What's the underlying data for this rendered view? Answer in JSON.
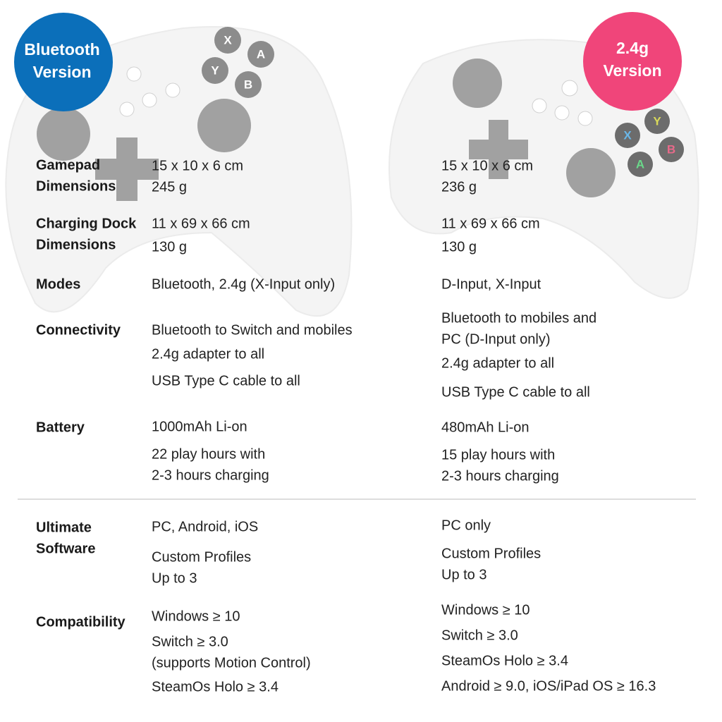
{
  "badges": {
    "left": [
      "Bluetooth",
      "Version"
    ],
    "right": [
      "2.4g",
      "Version"
    ]
  },
  "controllers": {
    "left": {
      "buttons": [
        "X",
        "A",
        "Y",
        "B"
      ]
    },
    "right": {
      "buttons": [
        "Y",
        "X",
        "B",
        "A"
      ]
    }
  },
  "rows": [
    {
      "label": [
        "Gamepad",
        "Dimensions"
      ],
      "left": [
        "15 x 10 x 6 cm",
        "245 g"
      ],
      "right": [
        "15 x 10 x 6 cm",
        "236 g"
      ]
    },
    {
      "label": [
        "Charging Dock",
        "Dimensions"
      ],
      "left": [
        "11 x 69 x 66 cm",
        "130 g"
      ],
      "right": [
        "11 x 69 x 66 cm",
        "130 g"
      ]
    },
    {
      "label": [
        "Modes"
      ],
      "left": [
        "Bluetooth, 2.4g (X-Input only)"
      ],
      "right": [
        "D-Input, X-Input"
      ]
    },
    {
      "label": [
        "Connectivity"
      ],
      "left": [
        "Bluetooth to Switch and mobiles",
        "2.4g adapter to all",
        "USB Type C cable to all"
      ],
      "right": [
        "Bluetooth to mobiles and",
        "PC (D-Input only)",
        "2.4g adapter to all",
        "USB Type C cable to all"
      ]
    },
    {
      "label": [
        "Battery"
      ],
      "left": [
        "1000mAh Li-on",
        "22 play hours with",
        "2-3 hours charging"
      ],
      "right": [
        "480mAh Li-on",
        "15 play hours with",
        "2-3 hours charging"
      ]
    },
    {
      "label": [
        "Ultimate",
        "Software"
      ],
      "left": [
        "PC, Android, iOS",
        "Custom Profiles",
        "Up to 3"
      ],
      "right": [
        "PC only",
        "Custom Profiles",
        "Up to 3"
      ]
    },
    {
      "label": [
        "Compatibility"
      ],
      "left": [
        "Windows ≥ 10",
        "Switch ≥ 3.0",
        "(supports Motion Control)",
        "SteamOs Holo ≥ 3.4"
      ],
      "right": [
        "Windows ≥ 10",
        "Switch ≥ 3.0",
        "SteamOs Holo ≥ 3.4",
        "Android ≥ 9.0, iOS/iPad OS ≥ 16.3"
      ]
    }
  ]
}
